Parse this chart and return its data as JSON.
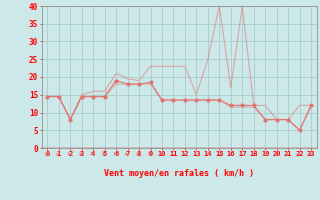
{
  "x": [
    0,
    1,
    2,
    3,
    4,
    5,
    6,
    7,
    8,
    9,
    10,
    11,
    12,
    13,
    14,
    15,
    16,
    17,
    18,
    19,
    20,
    21,
    22,
    23
  ],
  "wind_avg": [
    14.5,
    14.5,
    8,
    14.5,
    14.5,
    14.5,
    19,
    18,
    18,
    18.5,
    13.5,
    13.5,
    13.5,
    13.5,
    13.5,
    13.5,
    12,
    12,
    12,
    8,
    8,
    8,
    5,
    12
  ],
  "wind_gust": [
    14.5,
    14.5,
    8,
    15,
    16,
    16,
    21,
    19.5,
    19,
    23,
    23,
    23,
    23,
    15,
    25,
    40,
    17,
    40,
    12,
    12,
    8,
    8,
    12,
    12
  ],
  "wind_min": [
    14.5,
    14.5,
    8,
    14.5,
    14.5,
    14.5,
    18,
    18,
    18,
    18,
    13.5,
    13.5,
    13.5,
    13.5,
    13.5,
    13.5,
    11.5,
    11.5,
    11.5,
    8,
    8,
    8,
    5,
    11.5
  ],
  "bg_color": "#cce8e8",
  "grid_color": "#aacccc",
  "line_color": "#e07070",
  "xlabel": "Vent moyen/en rafales ( km/h )",
  "xlim": [
    -0.5,
    23.5
  ],
  "ylim": [
    0,
    40
  ],
  "yticks": [
    0,
    5,
    10,
    15,
    20,
    25,
    30,
    35,
    40
  ],
  "xticks": [
    0,
    1,
    2,
    3,
    4,
    5,
    6,
    7,
    8,
    9,
    10,
    11,
    12,
    13,
    14,
    15,
    16,
    17,
    18,
    19,
    20,
    21,
    22,
    23
  ],
  "arrow_directions": [
    0,
    0,
    315,
    315,
    315,
    315,
    315,
    315,
    315,
    315,
    315,
    315,
    315,
    315,
    225,
    225,
    315,
    315,
    315,
    0,
    45,
    45,
    45,
    315
  ]
}
